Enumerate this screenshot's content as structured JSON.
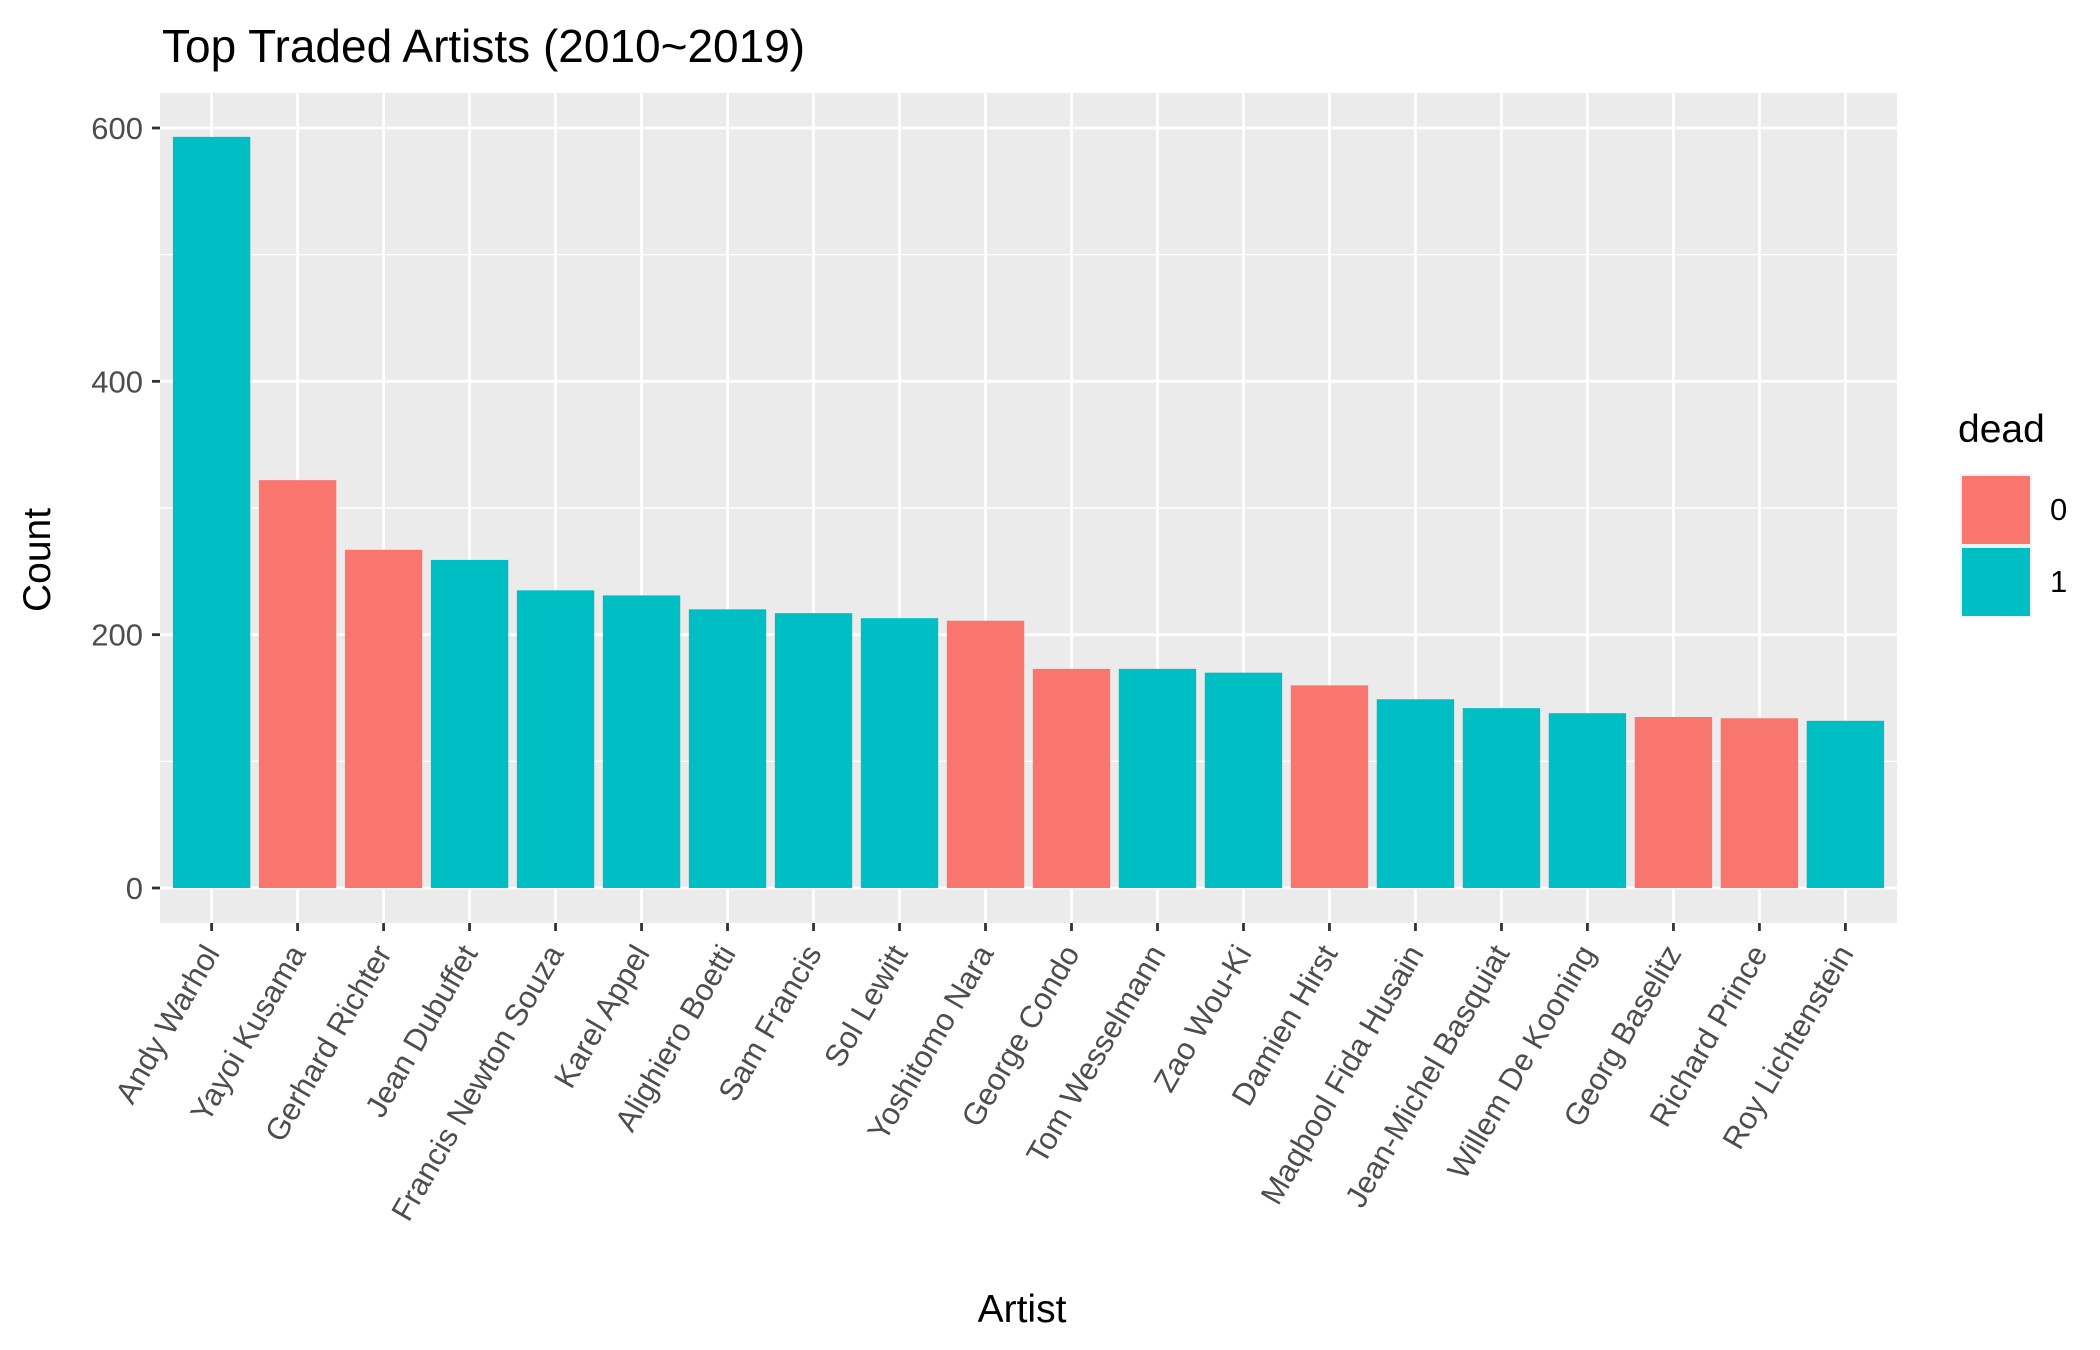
{
  "chart_data": {
    "type": "bar",
    "title": "Top Traded Artists (2010~2019)",
    "xlabel": "Artist",
    "ylabel": "Count",
    "ylim": [
      0,
      630
    ],
    "yticks": [
      0,
      200,
      400,
      600
    ],
    "grid": true,
    "legend_position": "right",
    "legend": {
      "title": "dead",
      "entries": [
        {
          "label": "0",
          "color": "#F8766D"
        },
        {
          "label": "1",
          "color": "#00BFC4"
        }
      ]
    },
    "categories": [
      "Andy Warhol",
      "Yayoi Kusama",
      "Gerhard Richter",
      "Jean Dubuffet",
      "Francis Newton Souza",
      "Karel Appel",
      "Alighiero Boetti",
      "Sam Francis",
      "Sol Lewitt",
      "Yoshitomo Nara",
      "George Condo",
      "Tom Wesselmann",
      "Zao Wou-Ki",
      "Damien Hirst",
      "Maqbool Fida Husain",
      "Jean-Michel Basquiat",
      "Willem De Kooning",
      "Georg Baselitz",
      "Richard Prince",
      "Roy Lichtenstein"
    ],
    "values": [
      593,
      322,
      267,
      259,
      235,
      231,
      220,
      217,
      213,
      211,
      173,
      173,
      170,
      160,
      149,
      142,
      138,
      135,
      134,
      132
    ],
    "dead": [
      "1",
      "0",
      "0",
      "1",
      "1",
      "1",
      "1",
      "1",
      "1",
      "0",
      "0",
      "1",
      "1",
      "0",
      "1",
      "1",
      "1",
      "0",
      "0",
      "1"
    ]
  }
}
